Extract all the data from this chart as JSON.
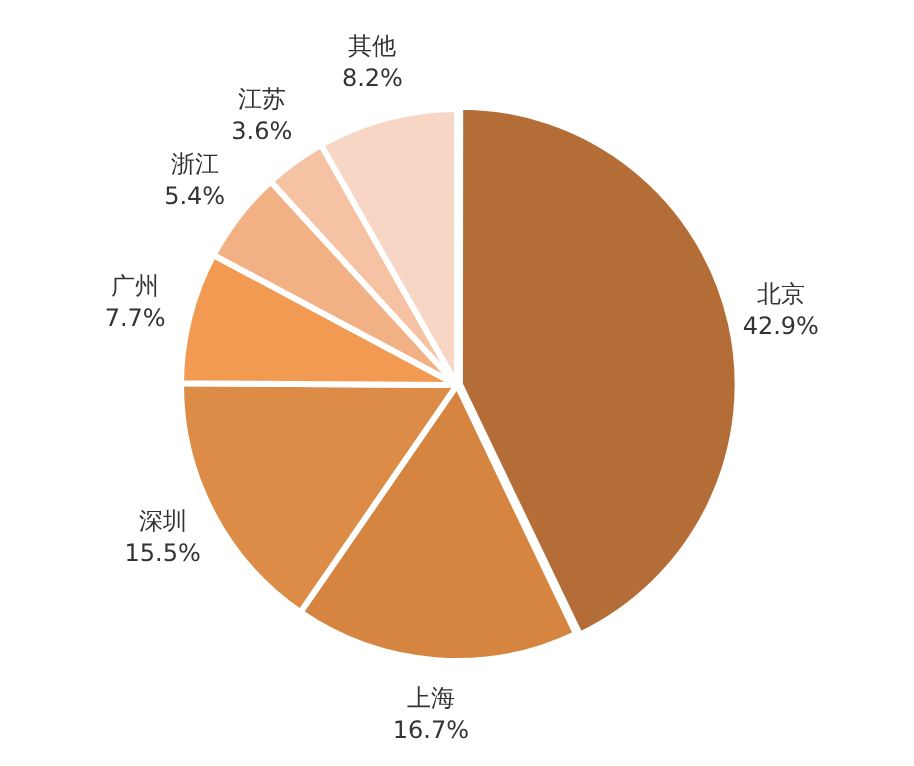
{
  "chart_data": {
    "type": "pie",
    "categories": [
      "北京",
      "上海",
      "深圳",
      "广州",
      "浙江",
      "江苏",
      "其他"
    ],
    "values": [
      42.9,
      16.7,
      15.5,
      7.7,
      5.4,
      3.6,
      8.2
    ],
    "colors": [
      "#b46d36",
      "#d5853f",
      "#dd8c47",
      "#f39a52",
      "#f2b184",
      "#f5c2a3",
      "#f7d6c6"
    ],
    "value_labels": [
      "42.9%",
      "16.7%",
      "15.5%",
      "7.7%",
      "5.4%",
      "3.6%",
      "8.2%"
    ],
    "legend": false
  }
}
